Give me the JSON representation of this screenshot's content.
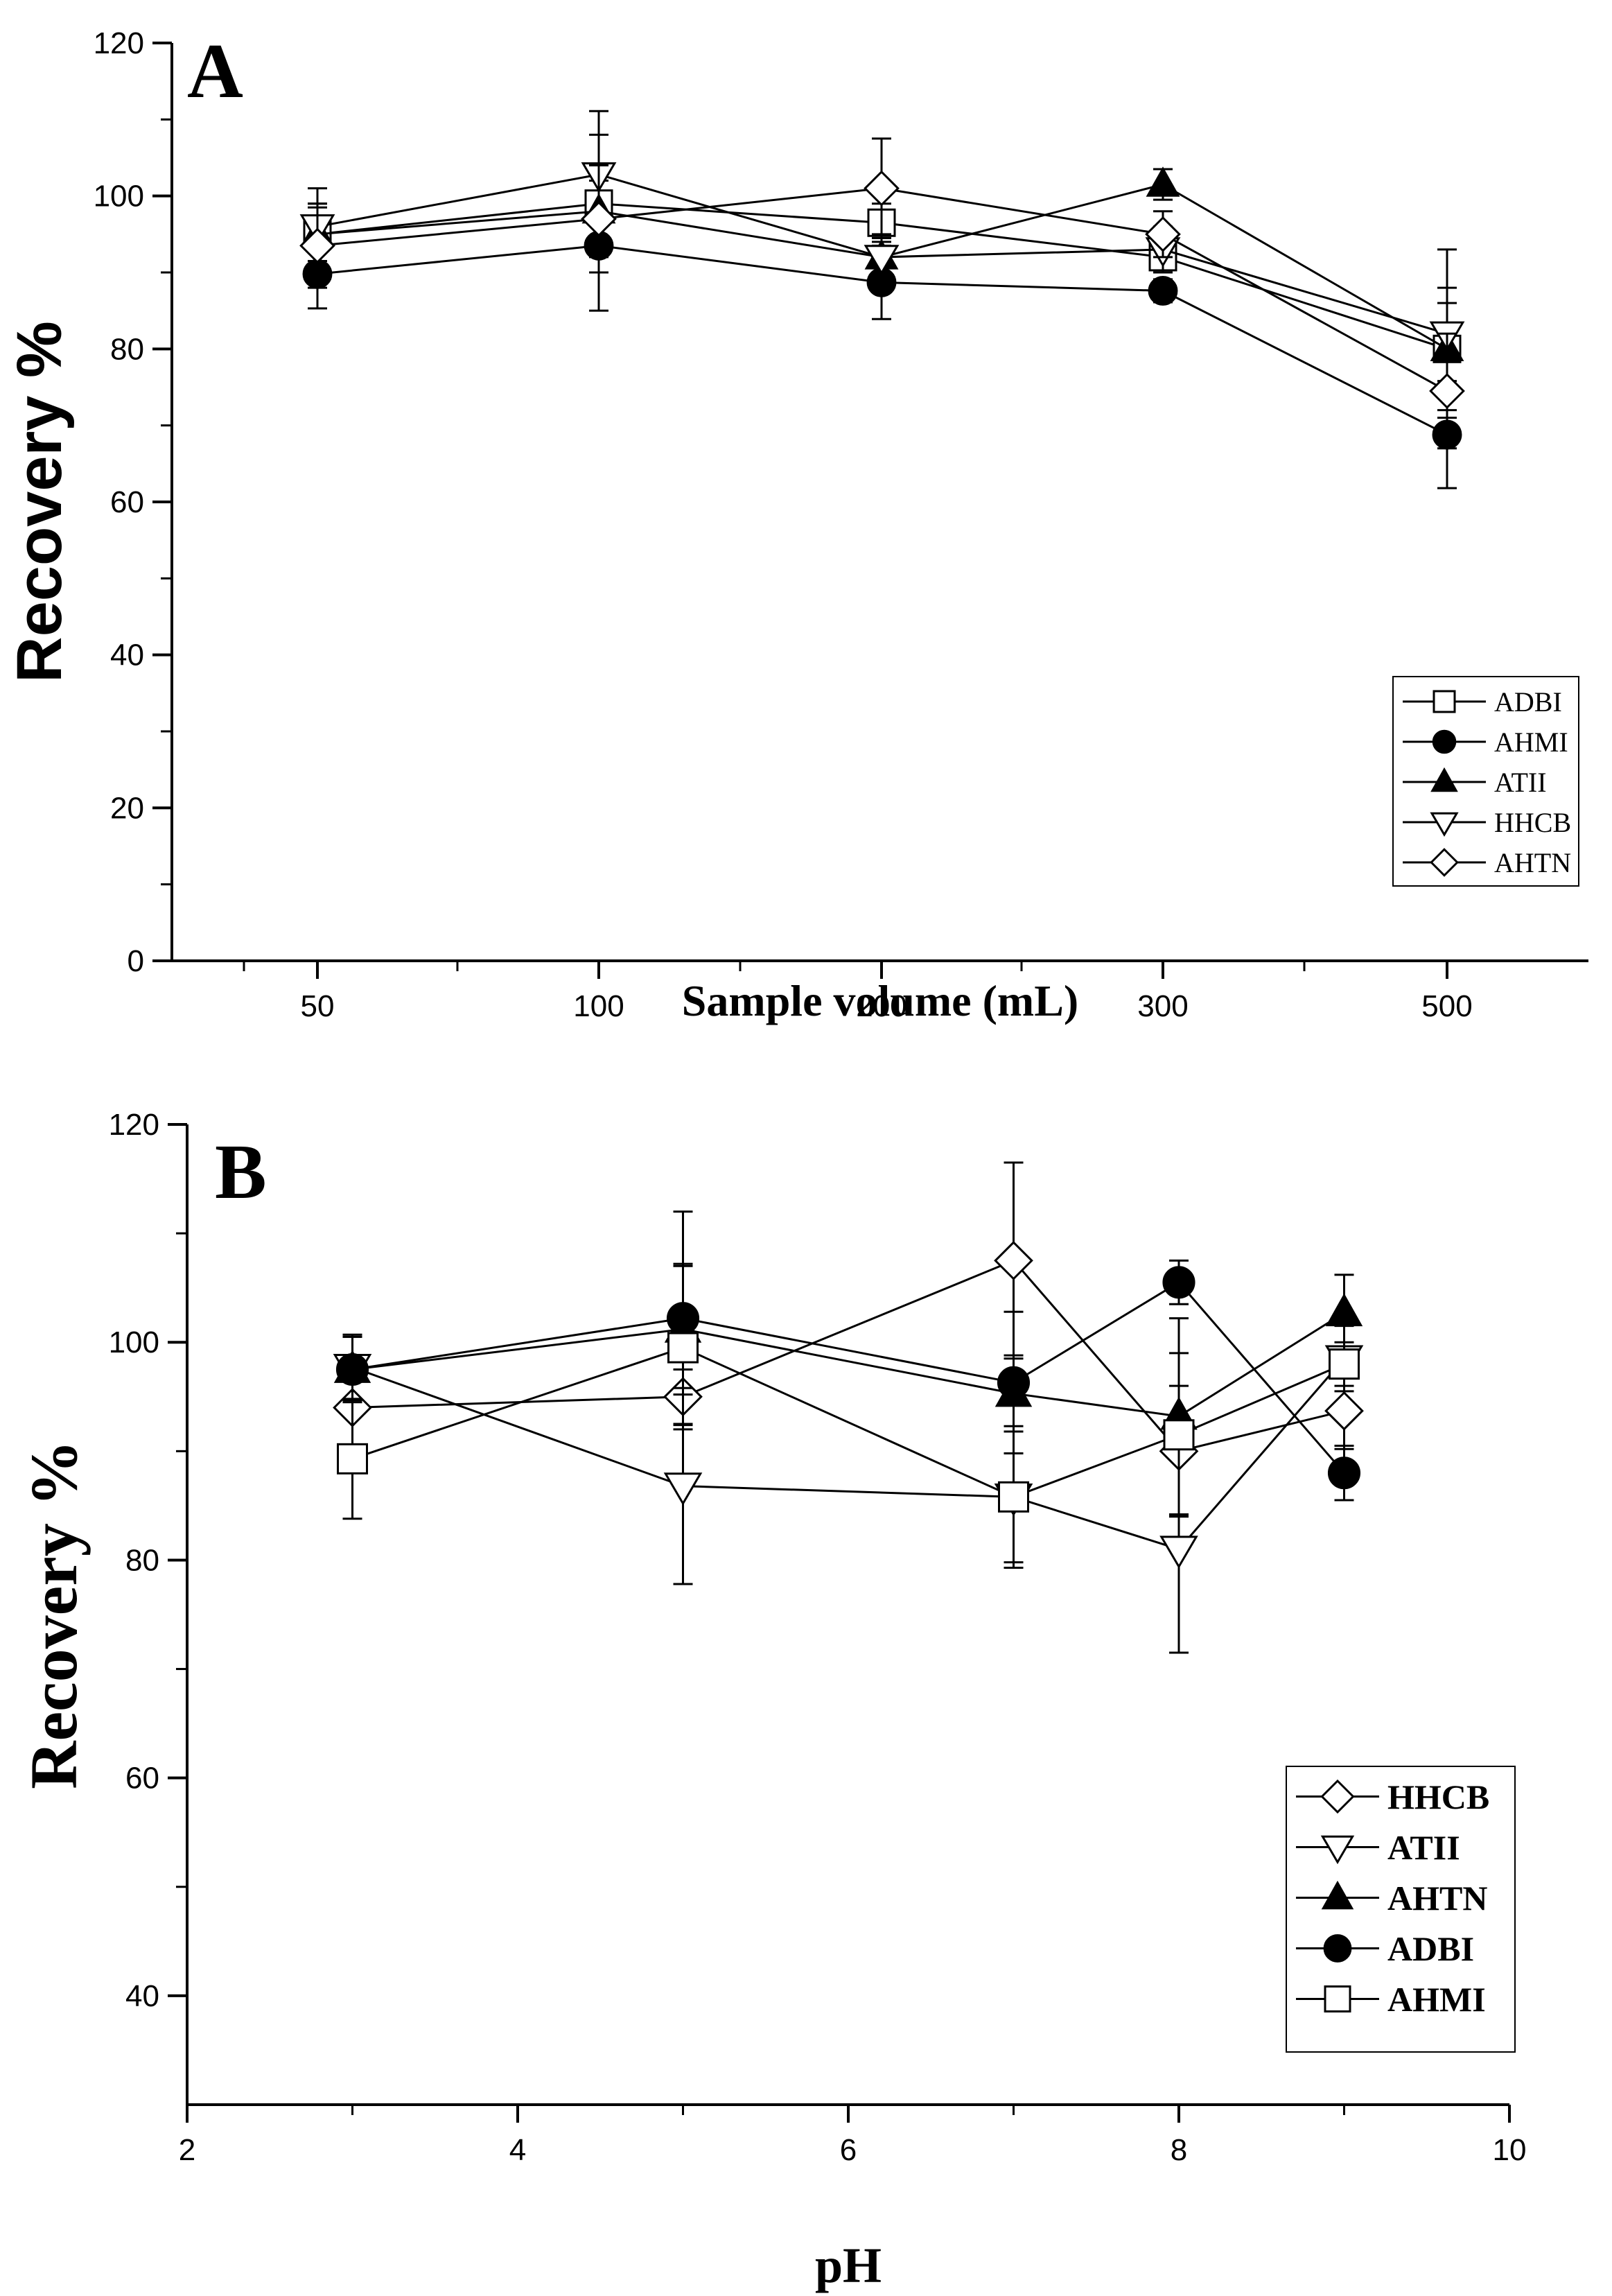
{
  "chart_data": [
    {
      "panel_label": "A",
      "type": "line",
      "title": "",
      "xlabel": "Sample volume (mL)",
      "ylabel": "Recovery %",
      "x_scale": "categorical",
      "categories": [
        "50",
        "100",
        "200",
        "300",
        "500"
      ],
      "ylim": [
        0,
        120
      ],
      "yticks": [
        "0",
        "20",
        "40",
        "60",
        "80",
        "100",
        "120"
      ],
      "grid": false,
      "legend_position": "lower-right",
      "series": [
        {
          "name": "ADBI",
          "marker": "open-square",
          "values": [
            95.0,
            99.0,
            96.5,
            92.0,
            80.0
          ],
          "errors": [
            4.0,
            9.0,
            2.5,
            2.0,
            8.0
          ]
        },
        {
          "name": "AHMI",
          "marker": "filled-circle",
          "values": [
            89.8,
            93.5,
            88.7,
            87.6,
            68.8
          ],
          "errors": [
            4.5,
            8.5,
            4.8,
            1.5,
            7.0
          ]
        },
        {
          "name": "ATII",
          "marker": "filled-triangle-up",
          "values": [
            95.0,
            98.0,
            92.0,
            101.5,
            80.0
          ],
          "errors": [
            3.5,
            6.0,
            3.0,
            2.0,
            6.0
          ]
        },
        {
          "name": "HHCB",
          "marker": "open-triangle-down",
          "values": [
            96.0,
            102.8,
            92.0,
            93.0,
            82.0
          ],
          "errors": [
            5.0,
            8.3,
            2.5,
            3.0,
            11.0
          ]
        },
        {
          "name": "AHTN",
          "marker": "open-diamond",
          "values": [
            93.5,
            97.0,
            101.0,
            95.0,
            74.5
          ],
          "errors": [
            5.5,
            7.0,
            6.5,
            3.0,
            7.5
          ]
        }
      ]
    },
    {
      "panel_label": "B",
      "type": "line",
      "title": "",
      "xlabel": "pH",
      "ylabel": "Recovery %",
      "x_scale": "linear",
      "xlim": [
        2,
        10
      ],
      "xticks": [
        "2",
        "4",
        "6",
        "8",
        "10"
      ],
      "ylim": [
        30,
        120
      ],
      "yticks": [
        "40",
        "60",
        "80",
        "100",
        "120"
      ],
      "grid": false,
      "legend_position": "lower-right",
      "series": [
        {
          "name": "HHCB",
          "marker": "open-diamond",
          "x": [
            3,
            5,
            7,
            8,
            9
          ],
          "values": [
            94.0,
            95.0,
            107.5,
            90.0,
            93.7
          ],
          "errors": [
            4.0,
            2.5,
            9.0,
            6.0,
            3.5
          ]
        },
        {
          "name": "ATII",
          "marker": "open-triangle-down",
          "x": [
            3,
            5,
            7,
            8,
            9
          ],
          "values": [
            97.7,
            86.8,
            85.8,
            81.0,
            98.5
          ],
          "errors": [
            3.0,
            9.0,
            6.0,
            9.5,
            3.0
          ]
        },
        {
          "name": "AHTN",
          "marker": "filled-triangle-up",
          "x": [
            3,
            5,
            7,
            8,
            9
          ],
          "values": [
            97.5,
            101.2,
            95.3,
            93.2,
            102.7
          ],
          "errors": [
            3.0,
            6.0,
            3.5,
            9.0,
            3.5
          ]
        },
        {
          "name": "ADBI",
          "marker": "filled-circle",
          "x": [
            3,
            5,
            7,
            8,
            9
          ],
          "values": [
            97.5,
            102.2,
            96.3,
            105.5,
            88.0
          ],
          "errors": [
            3.0,
            9.8,
            6.5,
            2.0,
            2.5
          ]
        },
        {
          "name": "AHMI",
          "marker": "open-square",
          "x": [
            3,
            5,
            7,
            8,
            9
          ],
          "values": [
            89.3,
            99.5,
            85.8,
            91.5,
            98.0
          ],
          "errors": [
            5.5,
            7.5,
            6.5,
            7.5,
            2.0
          ]
        }
      ]
    }
  ]
}
